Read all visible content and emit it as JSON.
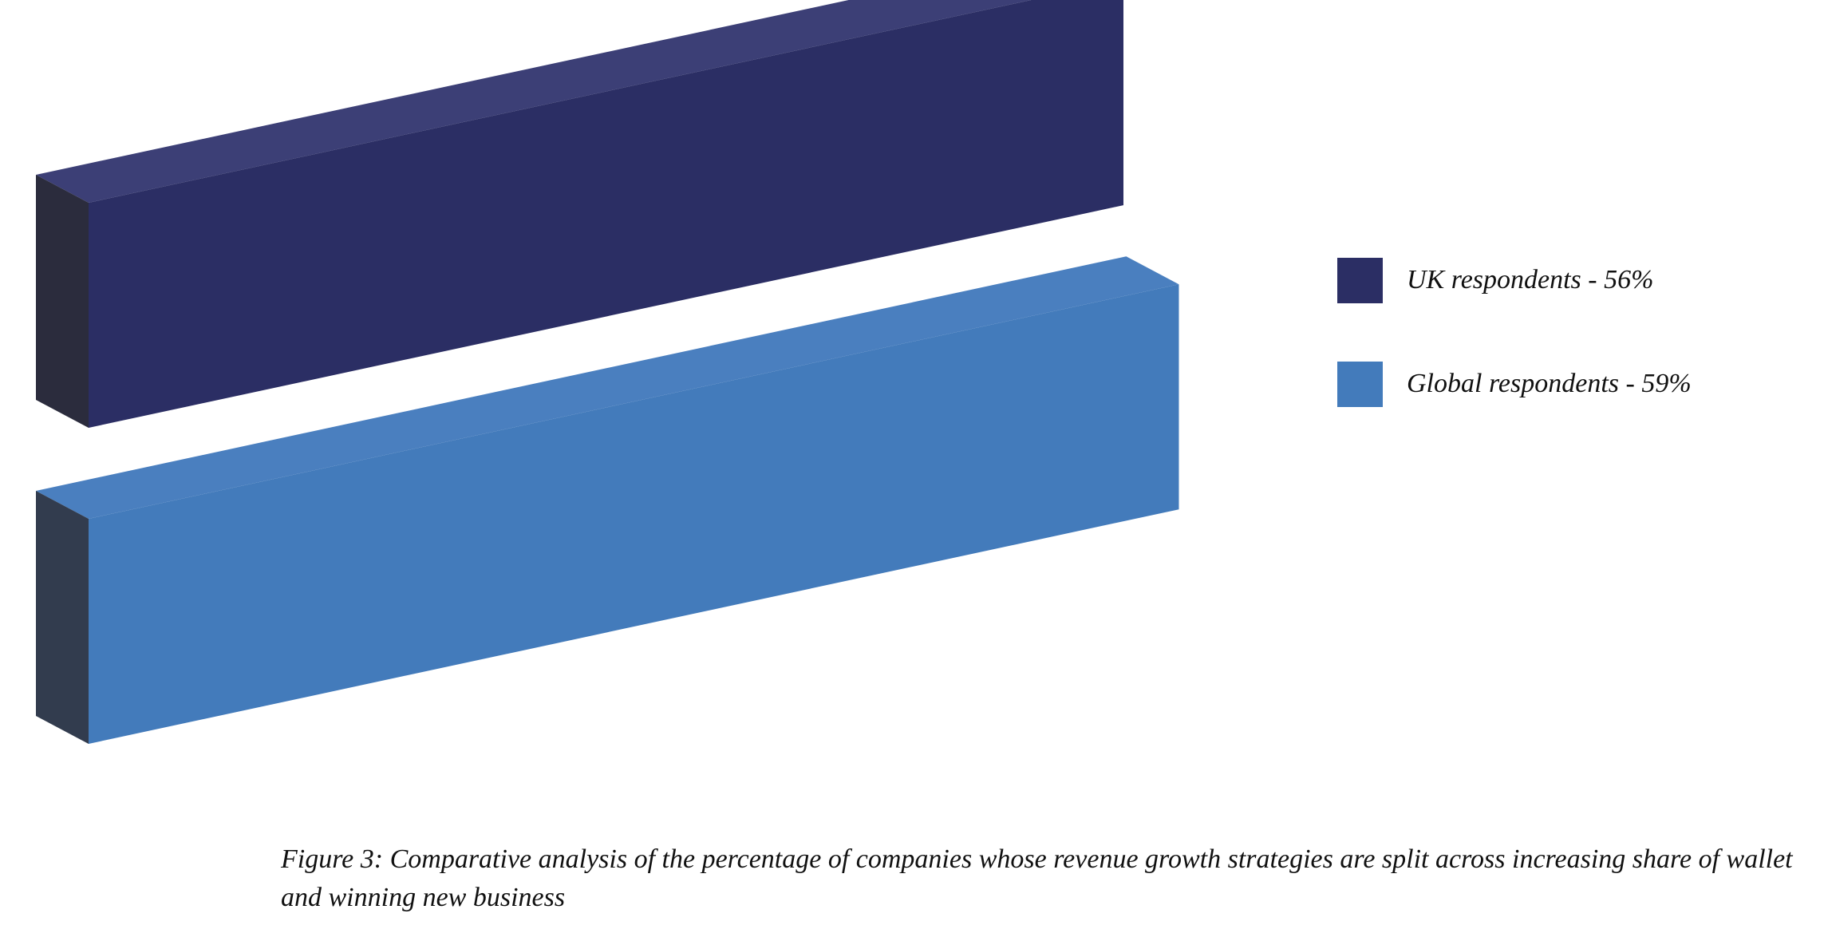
{
  "chart_data": {
    "type": "bar",
    "orientation": "horizontal",
    "style": "3d",
    "categories": [
      "UK respondents",
      "Global respondents"
    ],
    "values": [
      56,
      59
    ],
    "unit": "%",
    "colors": [
      "#2b2e64",
      "#437bbb"
    ],
    "side_colors": [
      "#2b2c3d",
      "#323c4e"
    ],
    "top_colors": [
      "#3c3f76",
      "#4a7fbf"
    ],
    "legend": [
      {
        "label": "UK respondents - 56%",
        "color": "#2b2e64"
      },
      {
        "label": "Global respondents - 59%",
        "color": "#437bbb"
      }
    ],
    "legend_position": "right",
    "grid": false,
    "axes_visible": false,
    "xlim": [
      0,
      100
    ]
  },
  "caption": "Figure 3: Comparative analysis of the percentage of companies whose revenue growth strategies are split across increasing share of wallet and winning new business"
}
